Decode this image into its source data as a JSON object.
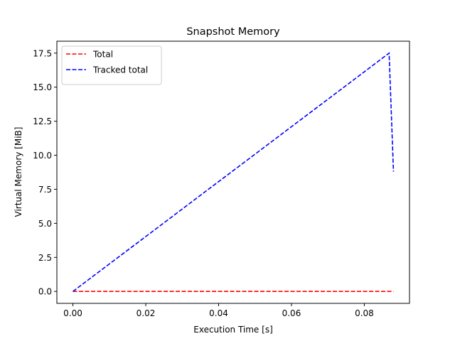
{
  "chart_data": {
    "type": "line",
    "title": "Snapshot Memory",
    "xlabel": "Execution Time [s]",
    "ylabel": "Virtual Memory [MiB]",
    "xlim": [
      -0.0044,
      0.0924
    ],
    "ylim": [
      -0.875,
      18.375
    ],
    "x_ticks": [
      0.0,
      0.02,
      0.04,
      0.06,
      0.08
    ],
    "x_tick_labels": [
      "0.00",
      "0.02",
      "0.04",
      "0.06",
      "0.08"
    ],
    "y_ticks": [
      0.0,
      2.5,
      5.0,
      7.5,
      10.0,
      12.5,
      15.0,
      17.5
    ],
    "y_tick_labels": [
      "0.0",
      "2.5",
      "5.0",
      "7.5",
      "10.0",
      "12.5",
      "15.0",
      "17.5"
    ],
    "grid": false,
    "legend_position": "upper-left",
    "series": [
      {
        "name": "Total",
        "color": "#ff0000",
        "line_style": "dashed",
        "x": [
          0.0,
          0.0868,
          0.088
        ],
        "y": [
          0.0,
          0.0,
          0.0
        ]
      },
      {
        "name": "Tracked total",
        "color": "#0000ff",
        "line_style": "dashed",
        "x": [
          0.0,
          0.0868,
          0.088
        ],
        "y": [
          0.0,
          17.5,
          8.8
        ]
      }
    ]
  }
}
